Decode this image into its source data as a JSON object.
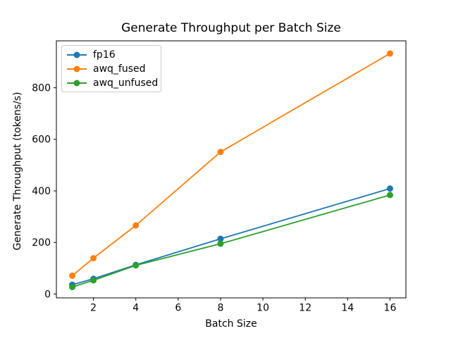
{
  "figure": {
    "background": "#ffffff"
  },
  "chart_data": {
    "type": "line",
    "title": "Generate Throughput per Batch Size",
    "xlabel": "Batch Size",
    "ylabel": "Generate Throughput (tokens/s)",
    "x": [
      1,
      2,
      4,
      8,
      16
    ],
    "series": [
      {
        "name": "fp16",
        "color": "#1f77b4",
        "values": [
          36,
          59,
          113,
          214,
          409
        ]
      },
      {
        "name": "awq_fused",
        "color": "#ff7f0e",
        "values": [
          71,
          139,
          266,
          551,
          933
        ]
      },
      {
        "name": "awq_unfused",
        "color": "#2ca02c",
        "values": [
          27,
          53,
          111,
          195,
          384
        ]
      }
    ],
    "xticks": [
      2,
      4,
      6,
      8,
      10,
      12,
      14,
      16
    ],
    "yticks": [
      0,
      200,
      400,
      600,
      800
    ],
    "xlim": [
      0.25,
      16.75
    ],
    "ylim": [
      -15,
      982
    ],
    "grid": false,
    "legend_position": "upper left",
    "marker": "o",
    "line_width": 1.8,
    "marker_radius": 4.5,
    "axis_color": "#000000",
    "legend_border_color": "#cccccc"
  }
}
